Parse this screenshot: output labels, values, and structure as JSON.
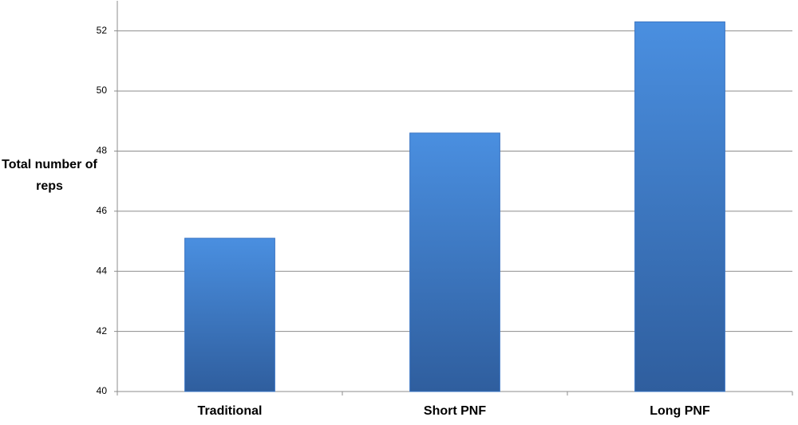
{
  "chart_data": {
    "type": "bar",
    "y_label": "Total number of reps",
    "categories": [
      "Traditional",
      "Short PNF",
      "Long PNF"
    ],
    "values": [
      45.1,
      48.6,
      52.3
    ],
    "color": "#3a75c4",
    "ylim": [
      40,
      53
    ],
    "yticks": [
      40,
      42,
      44,
      46,
      48,
      50,
      52
    ],
    "grid": true
  }
}
